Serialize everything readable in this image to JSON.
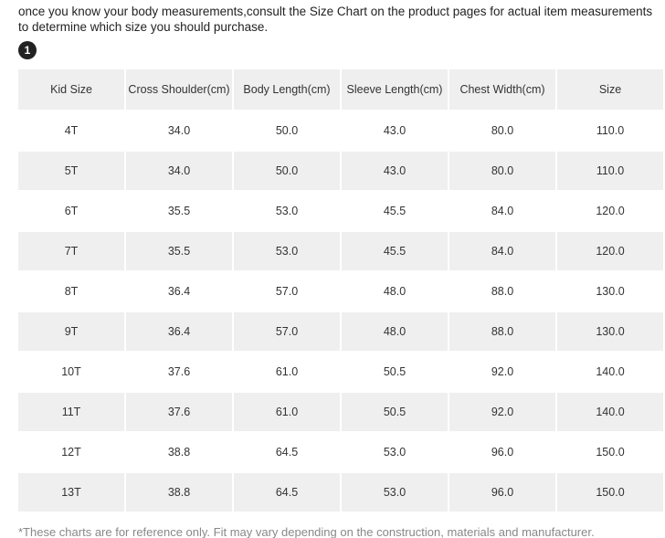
{
  "intro": [
    "once you know your body measurements,consult the Size Chart on the product pages for actual item measurements",
    "to determine which size you should purchase."
  ],
  "badge": "1",
  "table": {
    "headers": [
      "Kid Size",
      "Cross Shoulder(cm)",
      "Body Length(cm)",
      "Sleeve Length(cm)",
      "Chest Width(cm)",
      "Size"
    ],
    "rows": [
      [
        "4T",
        "34.0",
        "50.0",
        "43.0",
        "80.0",
        "110.0"
      ],
      [
        "5T",
        "34.0",
        "50.0",
        "43.0",
        "80.0",
        "110.0"
      ],
      [
        "6T",
        "35.5",
        "53.0",
        "45.5",
        "84.0",
        "120.0"
      ],
      [
        "7T",
        "35.5",
        "53.0",
        "45.5",
        "84.0",
        "120.0"
      ],
      [
        "8T",
        "36.4",
        "57.0",
        "48.0",
        "88.0",
        "130.0"
      ],
      [
        "9T",
        "36.4",
        "57.0",
        "48.0",
        "88.0",
        "130.0"
      ],
      [
        "10T",
        "37.6",
        "61.0",
        "50.5",
        "92.0",
        "140.0"
      ],
      [
        "11T",
        "37.6",
        "61.0",
        "50.5",
        "92.0",
        "140.0"
      ],
      [
        "12T",
        "38.8",
        "64.5",
        "53.0",
        "96.0",
        "150.0"
      ],
      [
        "13T",
        "38.8",
        "64.5",
        "53.0",
        "96.0",
        "150.0"
      ]
    ]
  },
  "footnote": "*These charts are for reference only. Fit may vary depending on the construction, materials and manufacturer."
}
